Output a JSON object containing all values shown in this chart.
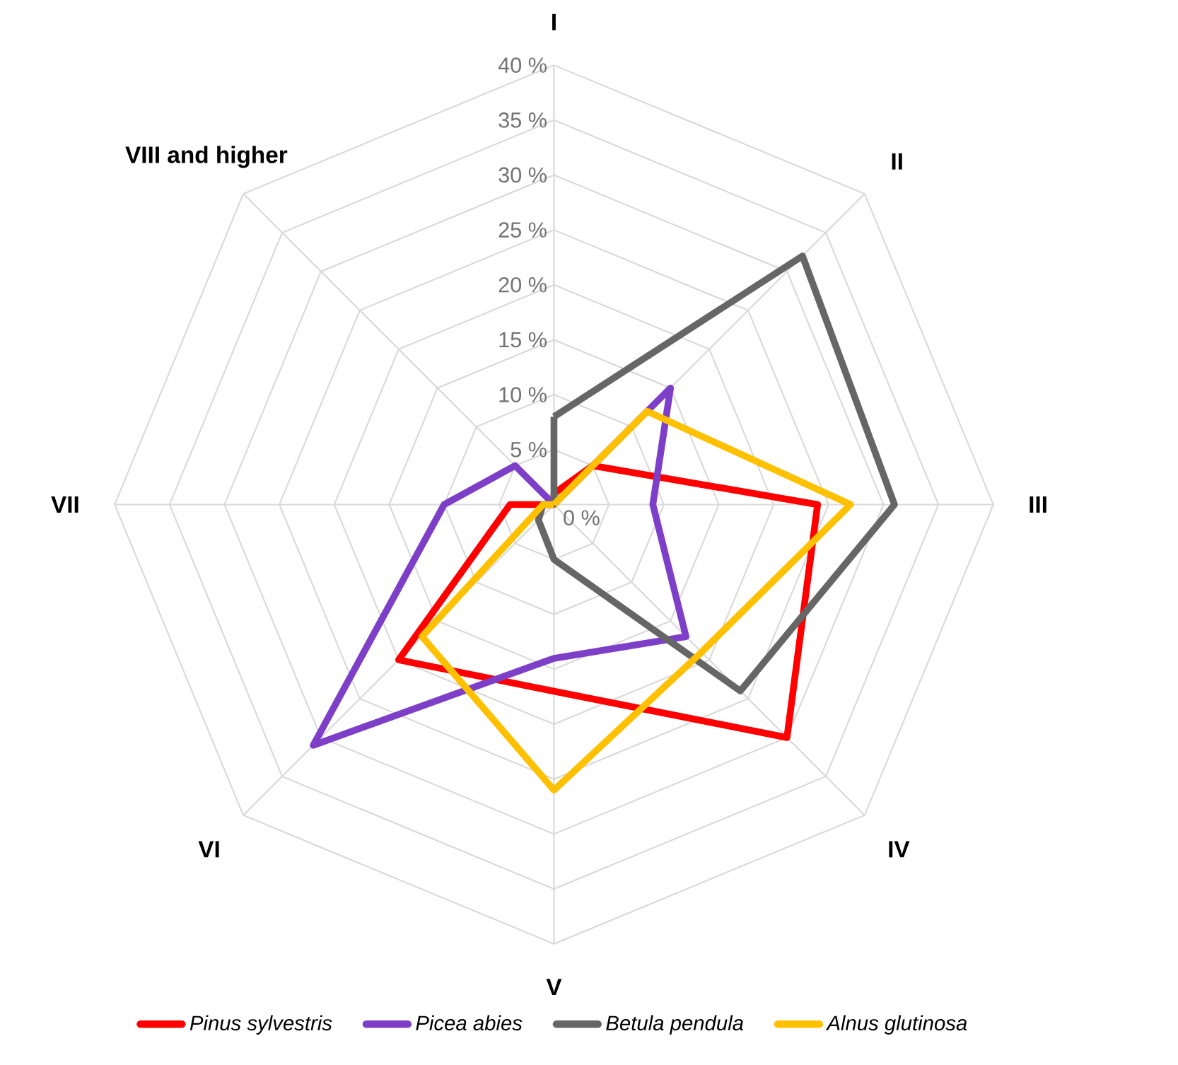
{
  "chart_data": {
    "type": "radar",
    "categories": [
      "I",
      "II",
      "III",
      "IV",
      "V",
      "VI",
      "VII",
      "VIII and higher"
    ],
    "series": [
      {
        "name": "*Pinus sylvestris*",
        "color": "#ff0000",
        "values": [
          1,
          5,
          24,
          30,
          17,
          20,
          4,
          0
        ]
      },
      {
        "name": "*Picea abies*",
        "color": "#7e3fc8",
        "values": [
          0,
          15,
          9,
          17,
          14,
          31,
          10,
          5
        ]
      },
      {
        "name": "*Betula pendula*",
        "color": "#666666",
        "values": [
          8,
          32,
          31,
          24,
          5,
          2,
          1,
          0
        ]
      },
      {
        "name": "*Alnus glutinosa*",
        "color": "#ffc000",
        "values": [
          0,
          12,
          27,
          19,
          26,
          17,
          1,
          0
        ]
      }
    ],
    "ylim": [
      0,
      40
    ],
    "yticks": [
      {
        "value": 0,
        "label": "0 %"
      },
      {
        "value": 5,
        "label": "5 %"
      },
      {
        "value": 10,
        "label": "10 %"
      },
      {
        "value": 15,
        "label": "15 %"
      },
      {
        "value": 20,
        "label": "20 %"
      },
      {
        "value": 25,
        "label": "25 %"
      },
      {
        "value": 30,
        "label": "30 %"
      },
      {
        "value": 35,
        "label": "35 %"
      },
      {
        "value": 40,
        "label": "40 %"
      }
    ],
    "grid": true,
    "legend": "bottom"
  }
}
